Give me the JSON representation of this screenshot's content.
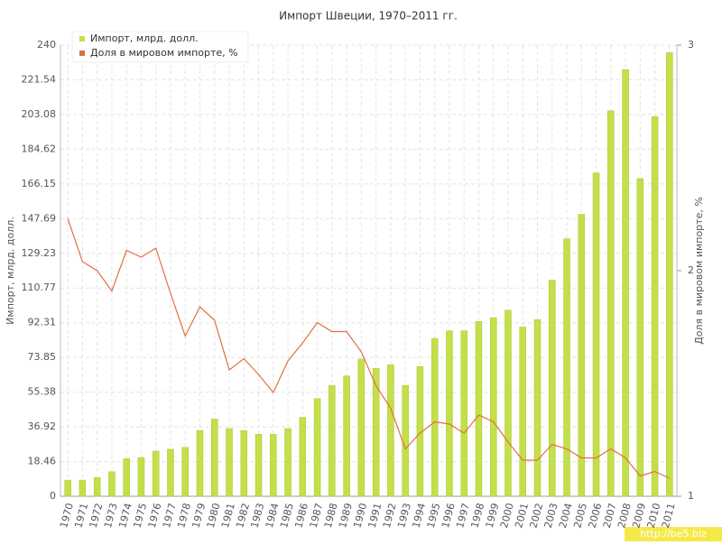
{
  "chart_data": {
    "type": "bar-line",
    "title": "Импорт Швеции, 1970–2011 гг.",
    "y_label": "Импорт, млрд. долл.",
    "y2_label": "Доля в мировом импорте, %",
    "categories": [
      "1970",
      "1971",
      "1972",
      "1973",
      "1974",
      "1975",
      "1976",
      "1977",
      "1978",
      "1979",
      "1980",
      "1981",
      "1982",
      "1983",
      "1984",
      "1985",
      "1986",
      "1987",
      "1988",
      "1989",
      "1990",
      "1991",
      "1992",
      "1993",
      "1994",
      "1995",
      "1996",
      "1997",
      "1998",
      "1999",
      "2000",
      "2001",
      "2002",
      "2003",
      "2004",
      "2005",
      "2006",
      "2007",
      "2008",
      "2009",
      "2010",
      "2011"
    ],
    "series": [
      {
        "name": "Импорт, млрд. долл.",
        "type": "bar",
        "color": "#c3df4a",
        "values": [
          8.6,
          8.6,
          10,
          13,
          20,
          20.6,
          24,
          25,
          26,
          35,
          41,
          36,
          35,
          33,
          33,
          36,
          42,
          52,
          59,
          64,
          73,
          68,
          70,
          59,
          69,
          84,
          88,
          88,
          93,
          95,
          99,
          90,
          94,
          115,
          137,
          150,
          172,
          205,
          227,
          169,
          202,
          236
        ]
      },
      {
        "name": "Доля в мировом импорте, %",
        "type": "line",
        "axis": "y2",
        "color": "#e07040",
        "values": [
          2.23,
          2.04,
          2.0,
          1.91,
          2.09,
          2.06,
          2.1,
          1.9,
          1.71,
          1.84,
          1.78,
          1.56,
          1.61,
          1.54,
          1.46,
          1.6,
          1.68,
          1.77,
          1.73,
          1.73,
          1.64,
          1.49,
          1.39,
          1.21,
          1.28,
          1.33,
          1.32,
          1.28,
          1.36,
          1.33,
          1.24,
          1.16,
          1.16,
          1.23,
          1.21,
          1.17,
          1.17,
          1.21,
          1.17,
          1.09,
          1.11,
          1.08
        ]
      }
    ],
    "ylim": [
      0,
      240
    ],
    "yticks": [
      0,
      18.46,
      36.92,
      55.38,
      73.85,
      92.31,
      110.77,
      129.23,
      147.69,
      166.15,
      184.62,
      203.08,
      221.54,
      240
    ],
    "y2lim": [
      1,
      3
    ],
    "y2ticks": [
      1,
      2,
      3
    ],
    "grid": true,
    "legend": "top-left",
    "watermark": "http://be5.biz"
  }
}
